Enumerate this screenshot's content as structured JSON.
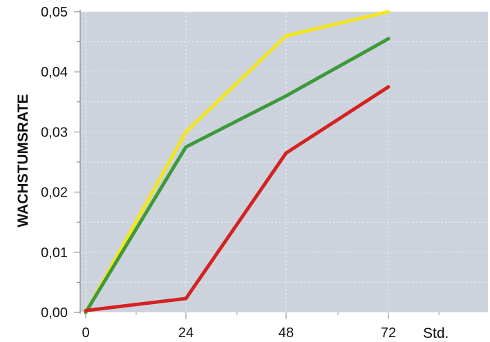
{
  "chart_data": {
    "type": "line",
    "title": "",
    "xlabel": "",
    "x_unit_label": "Std.",
    "ylabel": "WACHSTUMSRATE",
    "x": [
      0,
      24,
      48,
      72
    ],
    "x_tick_labels": [
      "0",
      "24",
      "48",
      "72"
    ],
    "ylim": [
      0,
      0.05
    ],
    "y_ticks": [
      0,
      0.01,
      0.02,
      0.03,
      0.04,
      0.05
    ],
    "y_tick_labels": [
      "0,00",
      "0,01",
      "0,02",
      "0,03",
      "0,04",
      "0,05"
    ],
    "grid": true,
    "legend": "none",
    "background_color": "#cdd3dc",
    "series": [
      {
        "color": "#f2e622",
        "values": [
          0.0,
          0.03,
          0.046,
          0.05
        ]
      },
      {
        "color": "#3d9a3a",
        "values": [
          0.0,
          0.0275,
          0.036,
          0.0455
        ]
      },
      {
        "color": "#d42222",
        "values": [
          0.0003,
          0.0023,
          0.0265,
          0.0375
        ]
      }
    ]
  }
}
